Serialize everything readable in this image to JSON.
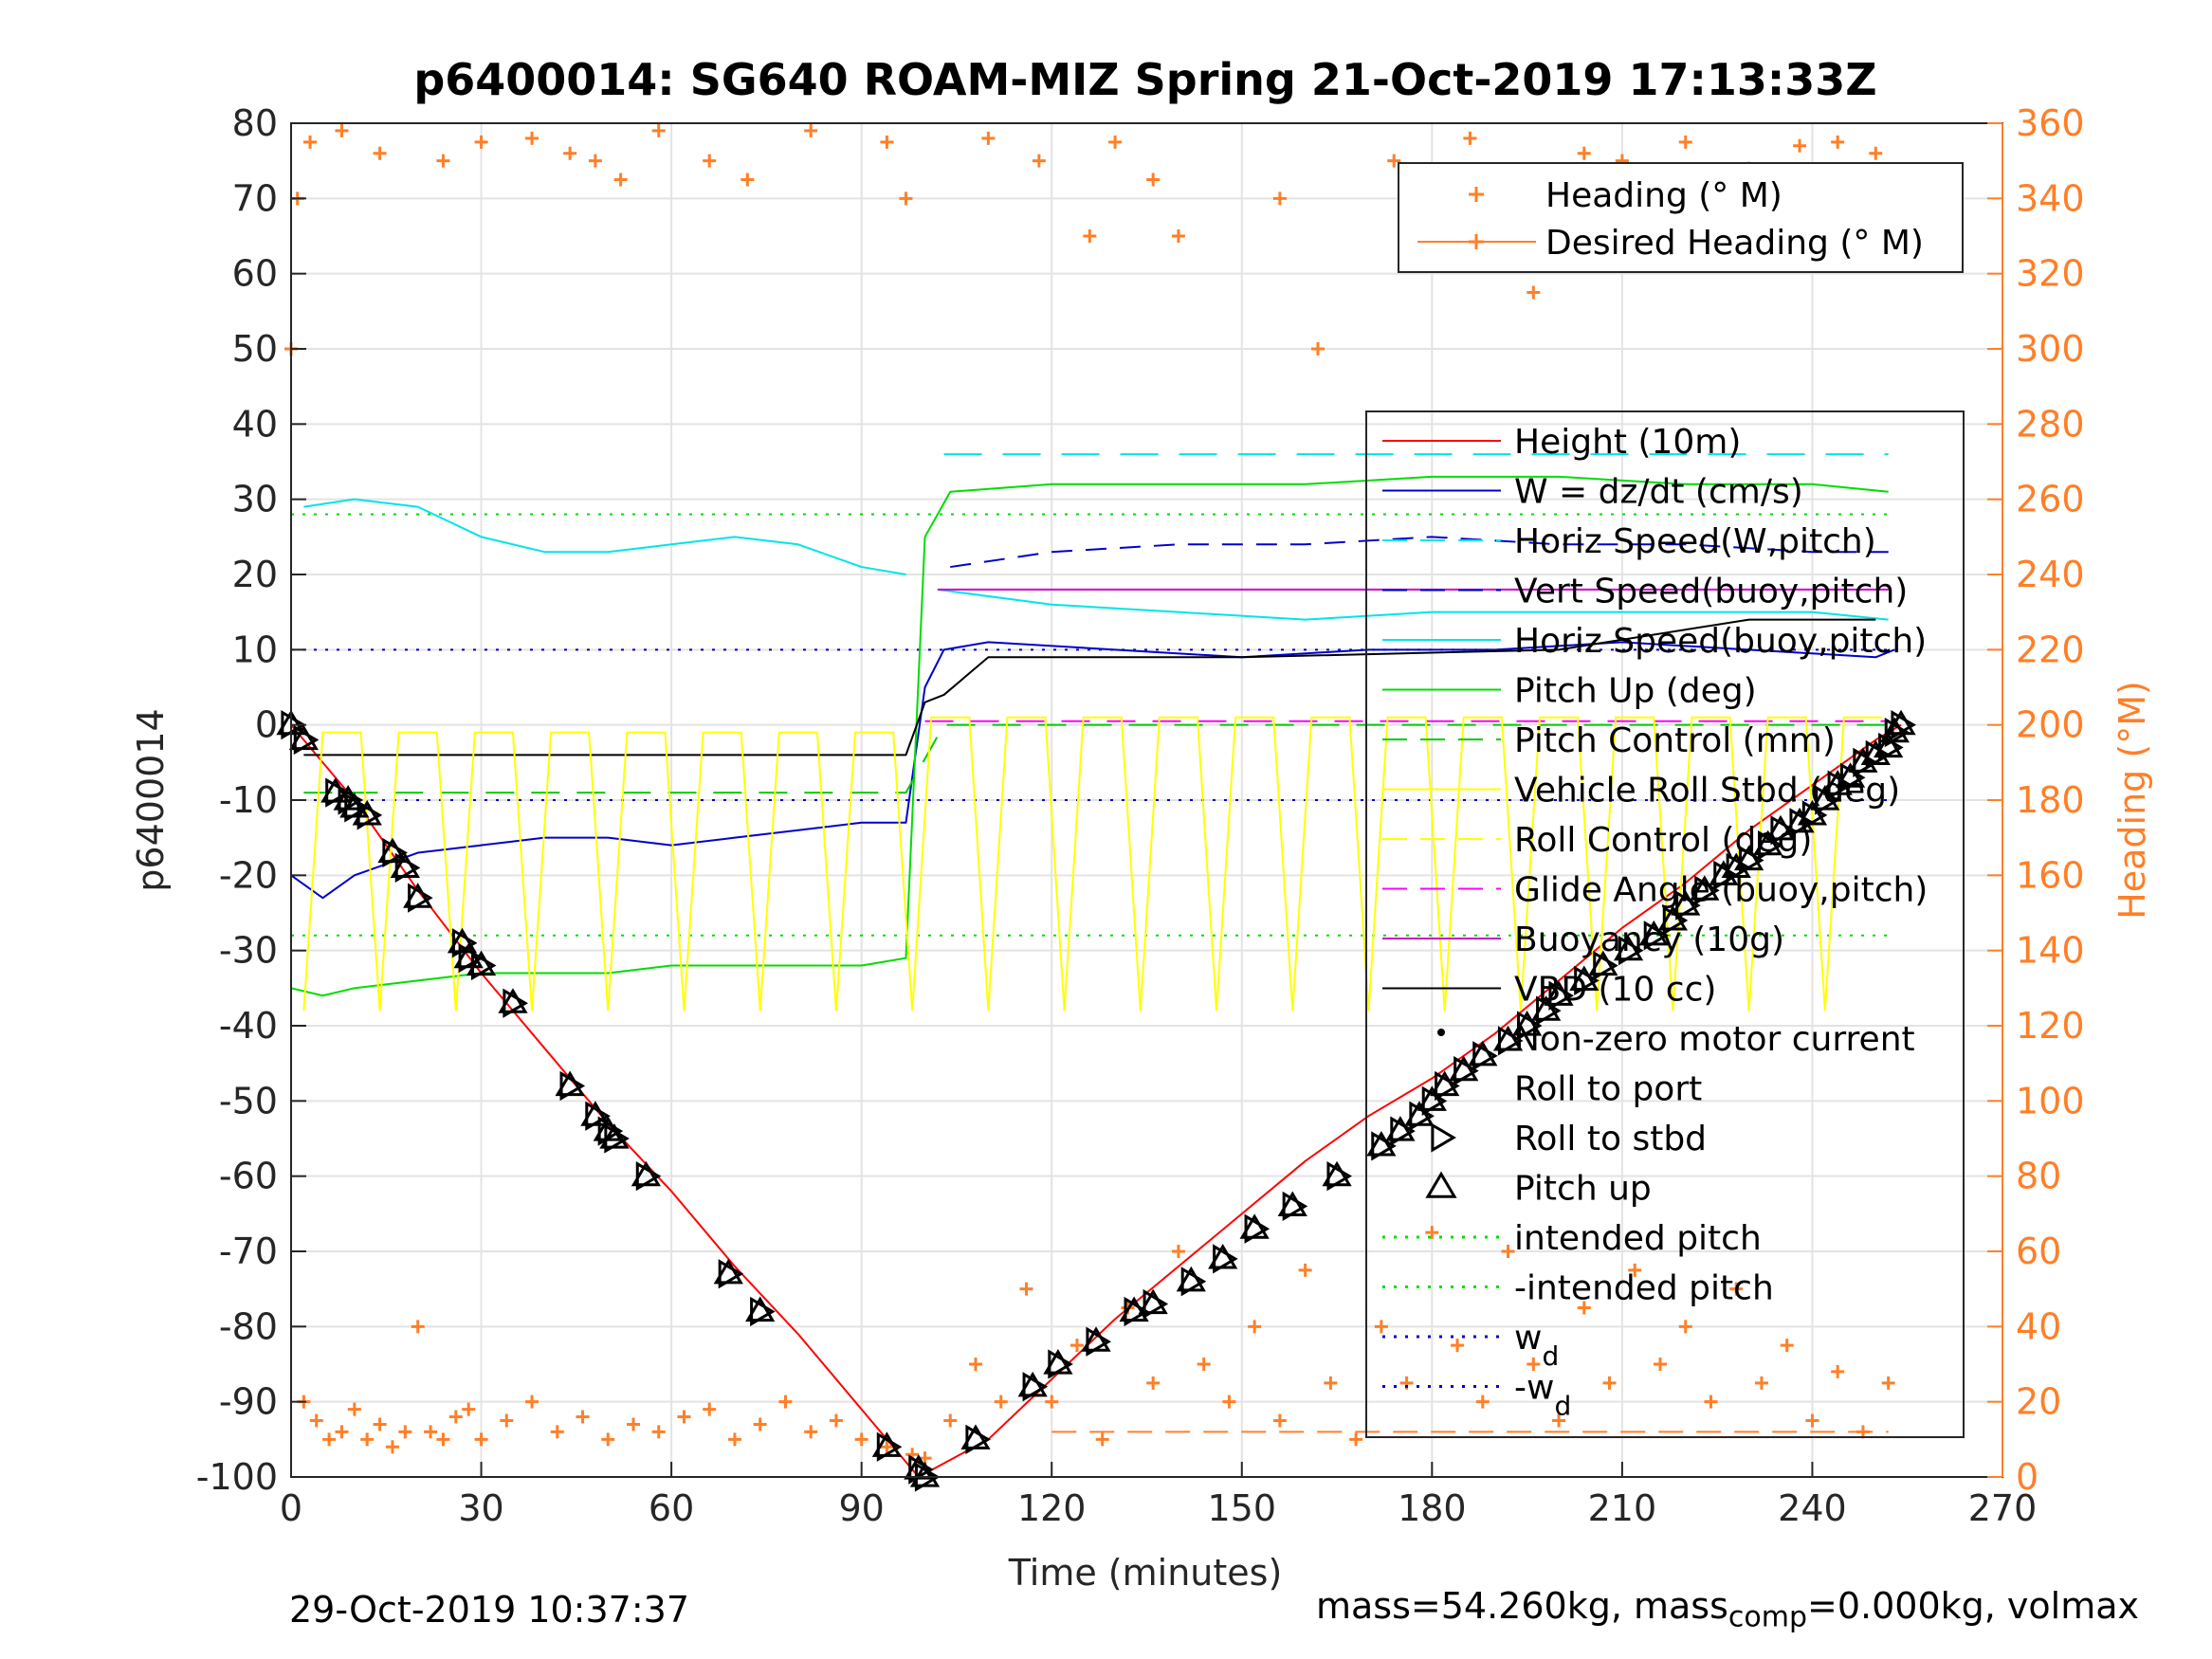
{
  "chart_data": {
    "type": "line",
    "title": "p6400014: SG640 ROAM-MIZ Spring 21-Oct-2019 17:13:33Z",
    "xlabel": "Time (minutes)",
    "ylabel": "p6400014",
    "y2label": "Heading (°M)",
    "xlim": [
      0,
      270
    ],
    "ylim": [
      -100,
      80
    ],
    "y2lim": [
      0,
      360
    ],
    "x_ticks": [
      "0",
      "30",
      "60",
      "90",
      "120",
      "150",
      "180",
      "210",
      "240",
      "270"
    ],
    "y_ticks": [
      "80",
      "70",
      "60",
      "50",
      "40",
      "30",
      "20",
      "10",
      "0",
      "-10",
      "-20",
      "-30",
      "-40",
      "-50",
      "-60",
      "-70",
      "-80",
      "-90",
      "-100"
    ],
    "y2_ticks": [
      "360",
      "340",
      "320",
      "300",
      "280",
      "260",
      "240",
      "220",
      "200",
      "180",
      "160",
      "140",
      "120",
      "100",
      "80",
      "60",
      "40",
      "20",
      "0"
    ],
    "grid": true,
    "colors": {
      "height": "#ff0000",
      "w": "#0000cc",
      "horiz_w": "#00e5e5",
      "vert_buoy": "#0000cc",
      "horiz_buoy": "#00e5e5",
      "pitch": "#00dd00",
      "pitch_control": "#00cc00",
      "roll": "#ffff00",
      "roll_control": "#ffff00",
      "glide": "#ff00ff",
      "buoyancy": "#cc00cc",
      "vbd": "#000000",
      "heading": "#ff7f27",
      "axis2": "#ff7f27"
    },
    "legend_top": [
      {
        "label": "Heading (° M)",
        "style": "plus"
      },
      {
        "label": "Desired Heading (° M)",
        "style": "line-plus"
      }
    ],
    "legend_main": [
      {
        "label": "Height (10m)",
        "style": "line",
        "color": "#ff0000"
      },
      {
        "label": "W = dz/dt (cm/s)",
        "style": "line",
        "color": "#0000cc"
      },
      {
        "label": "Horiz Speed(W,pitch)",
        "style": "dash",
        "color": "#00e5e5"
      },
      {
        "label": "Vert Speed(buoy,pitch)",
        "style": "dash",
        "color": "#0000cc"
      },
      {
        "label": "Horiz Speed(buoy,pitch)",
        "style": "line",
        "color": "#00e5e5"
      },
      {
        "label": "Pitch Up (deg)",
        "style": "line",
        "color": "#00dd00"
      },
      {
        "label": "Pitch Control (mm)",
        "style": "dash",
        "color": "#00cc00"
      },
      {
        "label": "Vehicle Roll Stbd (deg)",
        "style": "line",
        "color": "#ffff00"
      },
      {
        "label": "Roll Control (deg)",
        "style": "dash",
        "color": "#ffff00"
      },
      {
        "label": "Glide Angle (buoy,pitch)",
        "style": "dash",
        "color": "#ff00ff"
      },
      {
        "label": "Buoyancy (10g)",
        "style": "line",
        "color": "#cc00cc"
      },
      {
        "label": "VBD (10 cc)",
        "style": "line",
        "color": "#000000"
      },
      {
        "label": "Non-zero motor current",
        "style": "dot",
        "color": "#000000"
      },
      {
        "label": "Roll to port",
        "style": "none",
        "color": "#000000"
      },
      {
        "label": "Roll to stbd",
        "style": "tri-right",
        "color": "#000000"
      },
      {
        "label": "Pitch up",
        "style": "tri-up",
        "color": "#000000"
      },
      {
        "label": "intended pitch",
        "style": "dot-line",
        "color": "#00dd00"
      },
      {
        "label": "-intended pitch",
        "style": "dot-line",
        "color": "#00dd00"
      },
      {
        "label": "w",
        "sub": "d",
        "style": "dot-line",
        "color": "#0000cc"
      },
      {
        "label": "-w",
        "sub": "d",
        "style": "dot-line",
        "color": "#0000cc"
      }
    ],
    "series": [
      {
        "name": "Height (10m)",
        "x": [
          0,
          10,
          20,
          30,
          40,
          50,
          60,
          70,
          80,
          90,
          99,
          110,
          120,
          130,
          140,
          150,
          160,
          170,
          180,
          190,
          200,
          210,
          220,
          230,
          240,
          250,
          254
        ],
        "y": [
          0,
          -10,
          -22,
          -33,
          -43,
          -53,
          -62,
          -72,
          -81,
          -91,
          -100,
          -95,
          -87,
          -79,
          -72,
          -65,
          -58,
          -52,
          -47,
          -41,
          -34,
          -27,
          -21,
          -14,
          -8,
          -2,
          0
        ]
      },
      {
        "name": "W = dz/dt (cm/s)",
        "x": [
          0,
          5,
          10,
          20,
          30,
          40,
          50,
          60,
          70,
          80,
          90,
          97,
          100,
          103,
          110,
          130,
          150,
          170,
          190,
          210,
          230,
          250,
          253
        ],
        "y": [
          -20,
          -23,
          -20,
          -17,
          -16,
          -15,
          -15,
          -16,
          -15,
          -14,
          -13,
          -13,
          5,
          10,
          11,
          10,
          9,
          10,
          10,
          11,
          10,
          9,
          10
        ]
      },
      {
        "name": "Vert Speed(buoy,pitch)",
        "x": [
          104,
          120,
          140,
          160,
          180,
          200,
          220,
          240,
          252
        ],
        "y": [
          21,
          23,
          24,
          24,
          25,
          24,
          24,
          23,
          23
        ]
      },
      {
        "name": "Horiz Speed(W,pitch)",
        "x": [
          2,
          10,
          20,
          30,
          40,
          50,
          60,
          70,
          80,
          90,
          97
        ],
        "y": [
          29,
          30,
          29,
          25,
          23,
          23,
          24,
          25,
          24,
          21,
          20
        ]
      },
      {
        "name": "Horiz Speed(buoy,pitch)",
        "x": [
          102,
          120,
          140,
          160,
          180,
          200,
          220,
          240,
          252
        ],
        "y": [
          18,
          16,
          15,
          14,
          15,
          15,
          15,
          15,
          14
        ]
      },
      {
        "name": "Horiz Speed(W,pitch) ascent",
        "x": [
          103,
          130,
          160,
          190,
          220,
          252
        ],
        "y": [
          36,
          36,
          36,
          36,
          36,
          36
        ]
      },
      {
        "name": "Pitch Up (deg)",
        "x": [
          0,
          5,
          10,
          20,
          30,
          40,
          50,
          60,
          70,
          80,
          90,
          97,
          100,
          104,
          120,
          140,
          160,
          180,
          200,
          220,
          240,
          252
        ],
        "y": [
          -35,
          -36,
          -35,
          -34,
          -33,
          -33,
          -33,
          -32,
          -32,
          -32,
          -32,
          -31,
          25,
          31,
          32,
          32,
          32,
          33,
          33,
          32,
          32,
          31
        ]
      },
      {
        "name": "Buoyancy (10g)",
        "x": [
          102,
          120,
          150,
          180,
          210,
          240,
          252
        ],
        "y": [
          18,
          18,
          18,
          18,
          18,
          18,
          18
        ]
      },
      {
        "name": "VBD (10 cc)",
        "x": [
          2,
          30,
          60,
          97,
          100,
          103,
          110,
          150,
          200,
          230,
          250
        ],
        "y": [
          -4,
          -4,
          -4,
          -4,
          3,
          4,
          9,
          9,
          10,
          14,
          14
        ]
      },
      {
        "name": "Pitch Control (mm)",
        "x": [
          2,
          97,
          103,
          252
        ],
        "y": [
          -9,
          -9,
          0,
          0
        ]
      },
      {
        "name": "Glide Angle (buoy,pitch)",
        "x": [
          100,
          252
        ],
        "y": [
          0.5,
          0.5
        ]
      },
      {
        "name": "intended pitch",
        "x": [
          0,
          252
        ],
        "y": [
          28,
          28
        ]
      },
      {
        "name": "-intended pitch",
        "x": [
          0,
          252
        ],
        "y": [
          -28,
          -28
        ]
      },
      {
        "name": "wd",
        "x": [
          0,
          252
        ],
        "y": [
          10,
          10
        ]
      },
      {
        "name": "-wd",
        "x": [
          0,
          252
        ],
        "y": [
          -10,
          -10
        ]
      }
    ],
    "heading_series": {
      "name": "Heading (° M)",
      "x": [
        0,
        2,
        4,
        6,
        8,
        10,
        12,
        14,
        16,
        18,
        20,
        22,
        24,
        26,
        28,
        30,
        34,
        38,
        42,
        46,
        50,
        54,
        58,
        62,
        66,
        70,
        74,
        78,
        82,
        86,
        90,
        94,
        98,
        100,
        104,
        108,
        112,
        116,
        120,
        124,
        128,
        132,
        136,
        140,
        144,
        148,
        152,
        156,
        160,
        164,
        168,
        172,
        176,
        180,
        184,
        188,
        192,
        196,
        200,
        204,
        208,
        212,
        216,
        220,
        224,
        228,
        232,
        236,
        240,
        244,
        248,
        252
      ],
      "y": [
        300,
        20,
        15,
        10,
        12,
        18,
        10,
        14,
        8,
        12,
        40,
        12,
        10,
        16,
        18,
        10,
        15,
        20,
        12,
        16,
        10,
        14,
        12,
        16,
        18,
        10,
        14,
        20,
        12,
        15,
        10,
        8,
        6,
        5,
        15,
        30,
        20,
        50,
        20,
        35,
        10,
        45,
        25,
        60,
        30,
        20,
        40,
        15,
        55,
        25,
        10,
        40,
        25,
        65,
        35,
        20,
        60,
        30,
        15,
        45,
        25,
        55,
        30,
        40,
        20,
        50,
        25,
        35,
        15,
        28,
        12,
        25
      ]
    },
    "heading_scatter_top": {
      "x": [
        1,
        3,
        8,
        14,
        24,
        30,
        38,
        44,
        48,
        52,
        58,
        66,
        72,
        82,
        94,
        97,
        110,
        118,
        126,
        130,
        136,
        140,
        156,
        162,
        174,
        186,
        190,
        196,
        204,
        210,
        216,
        220,
        230,
        238,
        244,
        250
      ],
      "y": [
        340,
        355,
        358,
        352,
        350,
        355,
        356,
        352,
        350,
        345,
        358,
        350,
        345,
        358,
        355,
        340,
        356,
        350,
        330,
        355,
        345,
        330,
        340,
        300,
        350,
        356,
        335,
        315,
        352,
        350,
        345,
        355,
        348,
        354,
        355,
        352
      ]
    },
    "desired_heading": {
      "x": [
        120,
        252
      ],
      "y": [
        12,
        12
      ]
    },
    "markers_stbd": {
      "x": [
        0,
        2,
        7,
        9,
        10,
        12,
        16,
        18,
        20,
        27,
        28,
        30,
        35,
        44,
        48,
        50,
        51,
        56,
        69,
        74,
        94,
        99,
        100,
        108,
        117,
        121,
        127,
        133,
        136,
        142,
        147,
        152,
        158,
        165,
        172,
        175,
        178,
        180,
        182,
        185,
        188,
        192,
        195,
        198,
        200,
        204,
        207,
        211,
        215,
        218,
        220,
        223,
        226,
        228,
        230,
        233,
        235,
        238,
        240,
        242,
        244,
        246,
        248,
        250,
        252,
        253,
        254
      ],
      "y": [
        0,
        -2,
        -9,
        -10,
        -11,
        -12,
        -17,
        -19,
        -23,
        -29,
        -31,
        -32,
        -37,
        -48,
        -52,
        -54,
        -55,
        -60,
        -73,
        -78,
        -96,
        -99,
        -100,
        -95,
        -88,
        -85,
        -82,
        -78,
        -77,
        -74,
        -71,
        -67,
        -64,
        -60,
        -56,
        -54,
        -52,
        -50,
        -48,
        -46,
        -44,
        -42,
        -40,
        -38,
        -36,
        -34,
        -32,
        -30,
        -28,
        -26,
        -24,
        -22,
        -20,
        -19,
        -18,
        -16,
        -14,
        -13,
        -12,
        -10,
        -8,
        -7,
        -5,
        -4,
        -3,
        -1,
        0
      ]
    }
  },
  "footer": {
    "date": "29-Oct-2019 10:37:37",
    "mass_prefix": "mass=54.260kg, mass",
    "mass_sub": "comp",
    "mass_suffix": "=0.000kg, volmax"
  }
}
